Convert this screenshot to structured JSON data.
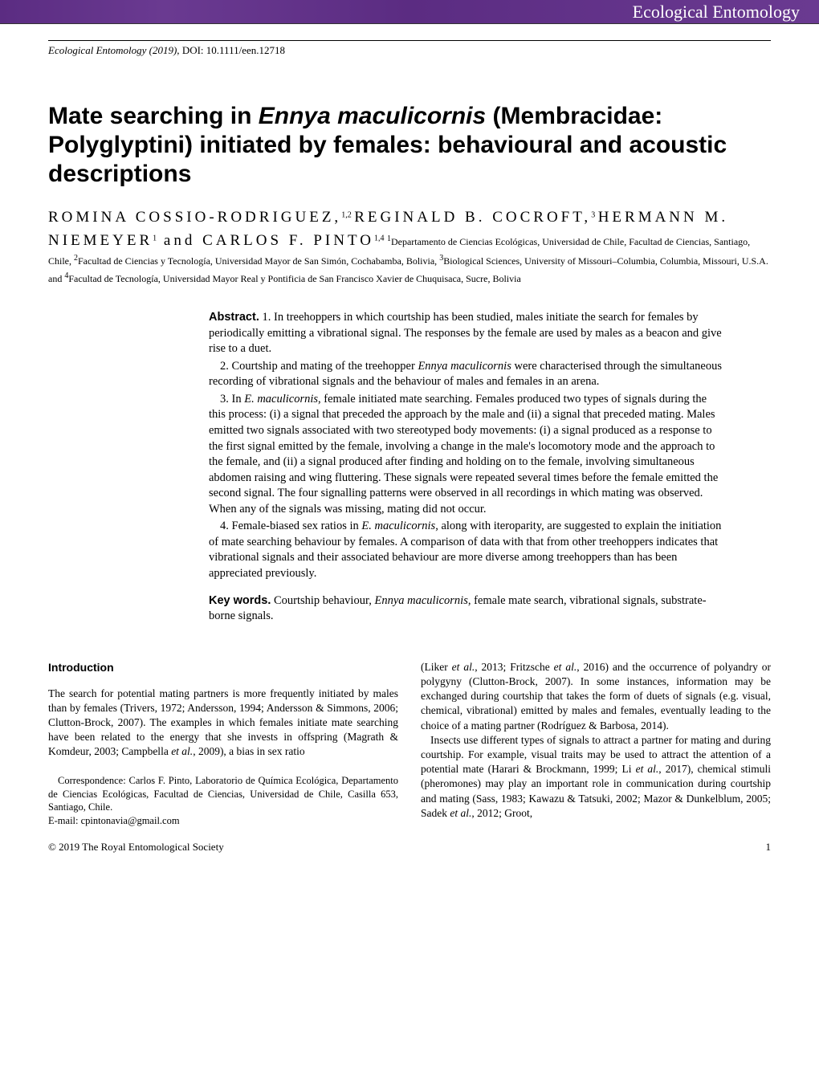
{
  "banner": {
    "journal": "Ecological Entomology"
  },
  "citation": {
    "journal_year": "Ecological Entomology (2019), ",
    "doi": "DOI: 10.1111/een.12718"
  },
  "title": {
    "pre": "Mate searching in ",
    "species": "Ennya maculicornis",
    "post": " (Membracidae: Polyglyptini) initiated by females: behavioural and acoustic descriptions"
  },
  "authors": {
    "a1": {
      "name": "ROMINA COSSIO-RODRIGUEZ,",
      "sup": "1,2"
    },
    "a2": {
      "name": "REGINALD B. COCROFT,",
      "sup": "3"
    },
    "a3": {
      "name": "HERMANN M. NIEMEYER",
      "sup": "1"
    },
    "and": " and ",
    "a4": {
      "name": "CARLOS F. PINTO",
      "sup": "1,4"
    },
    "affil1_sup": "1",
    "affil1": "Departamento de Ciencias Ecológicas, Universidad de Chile, Facultad de Ciencias, Santiago, Chile, ",
    "affil2_sup": "2",
    "affil2": "Facultad de Ciencias y Tecnología, Universidad Mayor de San Simón, Cochabamba, Bolivia, ",
    "affil3_sup": "3",
    "affil3": "Biological Sciences, University of Missouri–Columbia, Columbia, Missouri, U.S.A. and ",
    "affil4_sup": "4",
    "affil4": "Facultad de Tecnología, Universidad Mayor Real y Pontificia de San Francisco Xavier de Chuquisaca, Sucre, Bolivia"
  },
  "abstract": {
    "label": "Abstract.",
    "p1": " 1. In treehoppers in which courtship has been studied, males initiate the search for females by periodically emitting a vibrational signal. The responses by the female are used by males as a beacon and give rise to a duet.",
    "p2_a": "2. Courtship and mating of the treehopper ",
    "p2_species": "Ennya maculicornis",
    "p2_b": " were characterised through the simultaneous recording of vibrational signals and the behaviour of males and females in an arena.",
    "p3_a": "3. In ",
    "p3_species": "E. maculicornis",
    "p3_b": ", female initiated mate searching. Females produced two types of signals during the this process: (i) a signal that preceded the approach by the male and (ii) a signal that preceded mating. Males emitted two signals associated with two stereotyped body movements: (i) a signal produced as a response to the first signal emitted by the female, involving a change in the male's locomotory mode and the approach to the female, and (ii) a signal produced after finding and holding on to the female, involving simultaneous abdomen raising and wing fluttering. These signals were repeated several times before the female emitted the second signal. The four signalling patterns were observed in all recordings in which mating was observed. When any of the signals was missing, mating did not occur.",
    "p4_a": "4. Female-biased sex ratios in ",
    "p4_species": "E. maculicornis",
    "p4_b": ", along with iteroparity, are suggested to explain the initiation of mate searching behaviour by females. A comparison of data with that from other treehoppers indicates that vibrational signals and their associated behaviour are more diverse among treehoppers than has been appreciated previously."
  },
  "keywords": {
    "label": "Key words.",
    "text_a": " Courtship behaviour, ",
    "species": "Ennya maculicornis",
    "text_b": ", female mate search, vibrational signals, substrate-borne signals."
  },
  "intro": {
    "heading": "Introduction",
    "left_p1_a": "The search for potential mating partners is more frequently initiated by males than by females (Trivers, 1972; Andersson, 1994; Andersson & Simmons, 2006; Clutton-Brock, 2007). The examples in which females initiate mate searching have been related to the energy that she invests in offspring (Magrath & Komdeur, 2003; Campbella ",
    "left_p1_etal1": "et al.",
    "left_p1_b": ", 2009), a bias in sex ratio",
    "right_p1_a": "(Liker ",
    "right_p1_etal1": "et al.",
    "right_p1_b": ", 2013; Fritzsche ",
    "right_p1_etal2": "et al.",
    "right_p1_c": ", 2016) and the occurrence of polyandry or polygyny (Clutton-Brock, 2007). In some instances, information may be exchanged during courtship that takes the form of duets of signals (e.g. visual, chemical, vibrational) emitted by males and females, eventually leading to the choice of a mating partner (Rodríguez & Barbosa, 2014).",
    "right_p2_a": "Insects use different types of signals to attract a partner for mating and during courtship. For example, visual traits may be used to attract the attention of a potential mate (Harari & Brockmann, 1999; Li ",
    "right_p2_etal1": "et al.",
    "right_p2_b": ", 2017), chemical stimuli (pheromones) may play an important role in communication during courtship and mating (Sass, 1983; Kawazu & Tatsuki, 2002; Mazor & Dunkelblum, 2005; Sadek ",
    "right_p2_etal2": "et al.",
    "right_p2_c": ", 2012; Groot,"
  },
  "correspondence": {
    "text": "Correspondence: Carlos F. Pinto, Laboratorio de Química Ecológica, Departamento de Ciencias Ecológicas, Facultad de Ciencias, Universidad de Chile, Casilla 653, Santiago, Chile.",
    "email_label": "E-mail: ",
    "email": "cpintonavia@gmail.com"
  },
  "footer": {
    "copyright": "© 2019 The Royal Entomological Society",
    "page": "1"
  },
  "colors": {
    "banner_bg": "#5b2c82",
    "text": "#000000",
    "page_bg": "#ffffff"
  }
}
